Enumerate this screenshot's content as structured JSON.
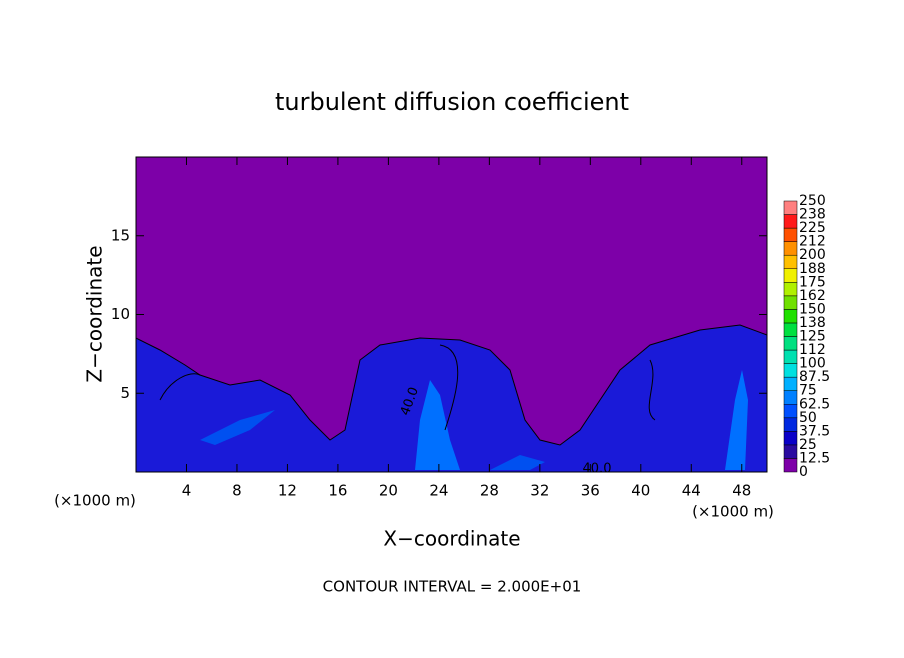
{
  "chart_data": {
    "type": "contour",
    "title": "turbulent diffusion coefficient",
    "xlabel": "X−coordinate",
    "ylabel": "Z−coordinate",
    "x_unit_left": "(×1000 m)",
    "x_unit_right": "(×1000 m)",
    "footer": "CONTOUR INTERVAL = 2.000E+01",
    "contour_labels": [
      "40.0",
      "40.0"
    ],
    "xlim": [
      0,
      50
    ],
    "xticks": [
      4,
      8,
      12,
      16,
      20,
      24,
      28,
      32,
      36,
      40,
      44,
      48
    ],
    "ylim": [
      0,
      20
    ],
    "yticks": [
      5,
      10,
      15
    ],
    "colorbar": {
      "levels": [
        0,
        12.5,
        25,
        37.5,
        50,
        62.5,
        75,
        87.5,
        100,
        {
          "value": 112.5,
          "label": "112"
        },
        125,
        {
          "value": 137.5,
          "label": "138"
        },
        150,
        {
          "value": 162.5,
          "label": "162"
        },
        175,
        {
          "value": 187.5,
          "label": "188"
        },
        200,
        {
          "value": 212.5,
          "label": "212"
        },
        225,
        {
          "value": 237.5,
          "label": "238"
        },
        250
      ],
      "colors": [
        "#7d00a8",
        "#2a0aa0",
        "#0a00c8",
        "#0028e0",
        "#0050ff",
        "#0080ff",
        "#00b0ff",
        "#00e0e0",
        "#00e0b0",
        "#00e080",
        "#00e040",
        "#20e000",
        "#70e000",
        "#b0f000",
        "#f0f000",
        "#ffc000",
        "#ff9000",
        "#ff5000",
        "#ff1a1a",
        "#ff8080"
      ]
    }
  }
}
